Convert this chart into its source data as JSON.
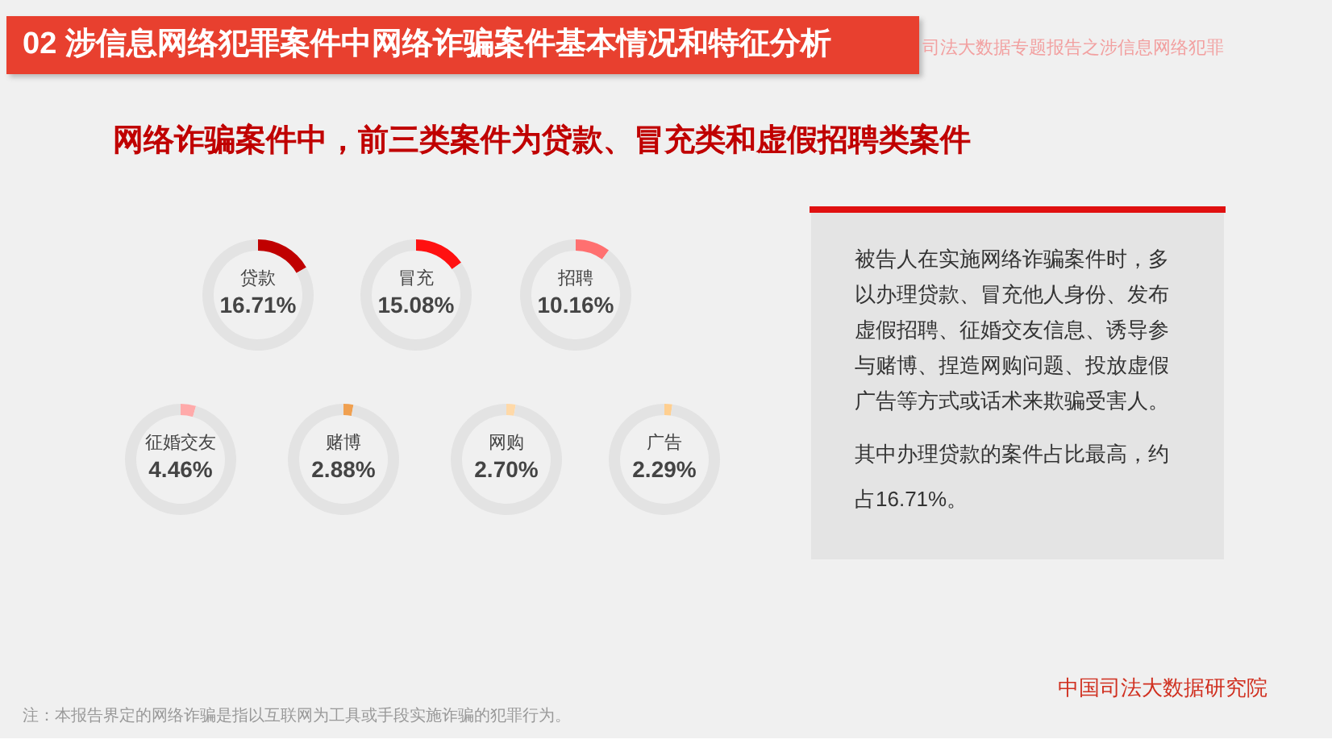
{
  "chart_data": [
    {
      "type": "other",
      "title": "02  涉信息网络犯罪案件中网络诈骗案件基本情况和特征分析",
      "subtitle": "网络诈骗案件中，前三类案件为贷款、冒充类和虚假招聘类案件",
      "annotations": [
        "司法大数据专题报告之涉信息网络犯罪",
        "注：本报告界定的网络诈骗是指以互联网为工具或手段实施诈骗的犯罪行为。",
        "中国司法大数据研究院"
      ]
    },
    {
      "type": "donut",
      "categories": [
        "贷款",
        null
      ],
      "values": [
        16.71,
        83.29
      ],
      "value_labels": [
        "16.71%",
        null
      ],
      "colors": [
        "#c00000",
        "#e3e3e3"
      ]
    },
    {
      "type": "donut",
      "categories": [
        "冒充",
        null
      ],
      "values": [
        15.08,
        84.92
      ],
      "value_labels": [
        "15.08%",
        null
      ],
      "colors": [
        "#ff1010",
        "#e3e3e3"
      ]
    },
    {
      "type": "donut",
      "categories": [
        "招聘",
        null
      ],
      "values": [
        10.16,
        89.84
      ],
      "value_labels": [
        "10.16%",
        null
      ],
      "colors": [
        "#ff7070",
        "#e3e3e3"
      ]
    },
    {
      "type": "donut",
      "categories": [
        "征婚交友",
        null
      ],
      "values": [
        4.46,
        95.54
      ],
      "value_labels": [
        "4.46%",
        null
      ],
      "colors": [
        "#ffaaaa",
        "#e3e3e3"
      ]
    },
    {
      "type": "donut",
      "categories": [
        "赌博",
        null
      ],
      "values": [
        2.88,
        97.12
      ],
      "value_labels": [
        "2.88%",
        null
      ],
      "colors": [
        "#f0a050",
        "#e3e3e3"
      ]
    },
    {
      "type": "donut",
      "categories": [
        "网购",
        null
      ],
      "values": [
        2.7,
        97.3
      ],
      "value_labels": [
        "2.70%",
        null
      ],
      "colors": [
        "#ffd9a8",
        "#e3e3e3"
      ]
    },
    {
      "type": "donut",
      "categories": [
        "广告",
        null
      ],
      "values": [
        2.29,
        97.71
      ],
      "value_labels": [
        "2.29%",
        null
      ],
      "colors": [
        "#ffcf90",
        "#e3e3e3"
      ]
    },
    {
      "type": "other",
      "annotations": [
        "被告人在实施网络诈骗案件时，多以办理贷款、冒充他人身份、发布虚假招聘、征婚交友信息、诱导参与赌博、捏造网购问题、投放虚假广告等方式或话术来欺骗受害人。",
        "其中办理贷款的案件占比最高，约占16.71%。"
      ]
    }
  ]
}
